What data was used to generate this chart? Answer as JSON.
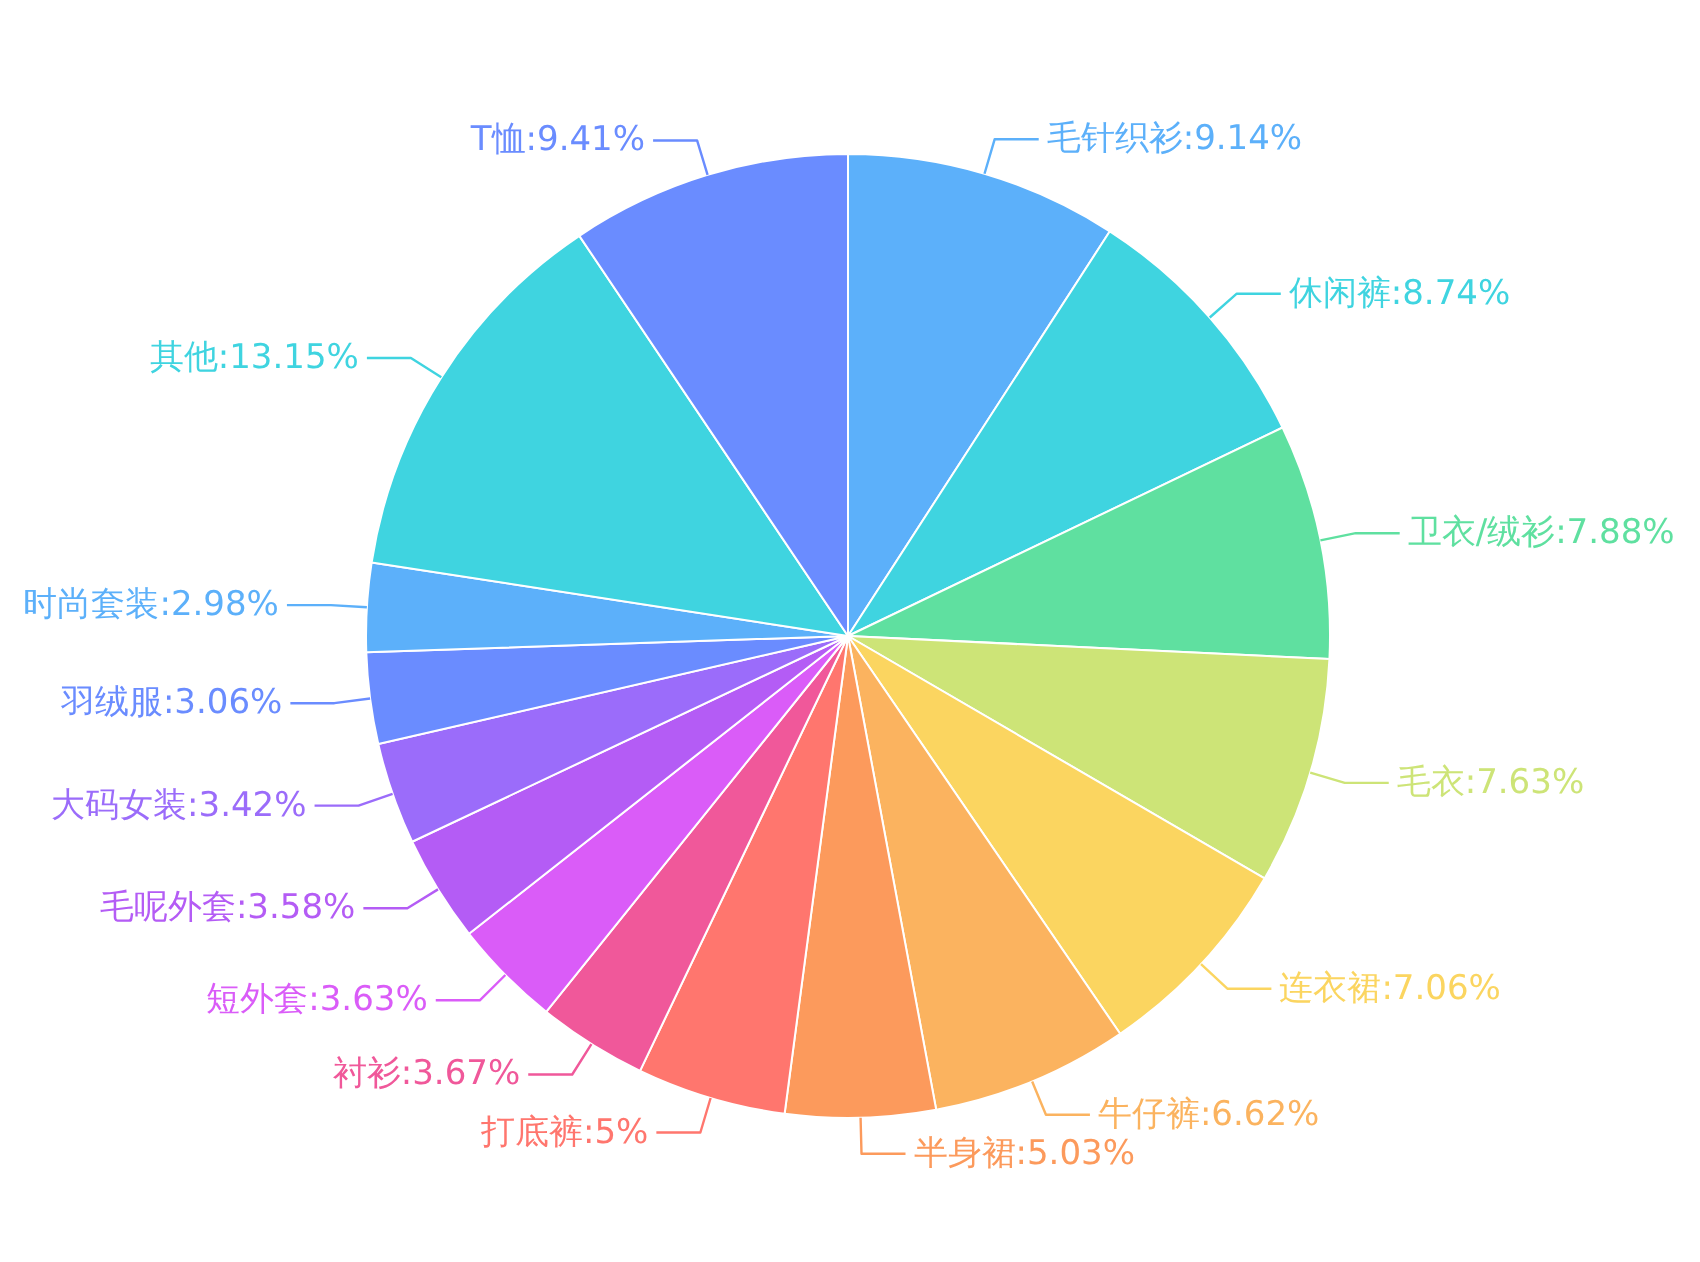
{
  "chart_data": {
    "type": "pie",
    "categories": [
      "毛针织衫",
      "休闲裤",
      "卫衣/绒衫",
      "毛衣",
      "连衣裙",
      "牛仔裤",
      "半身裙",
      "打底裤",
      "衬衫",
      "短外套",
      "毛呢外套",
      "大码女装",
      "羽绒服",
      "时尚套装",
      "其他",
      "T恤"
    ],
    "values": [
      9.14,
      8.74,
      7.88,
      7.63,
      7.06,
      6.62,
      5.03,
      5,
      3.67,
      3.63,
      3.58,
      3.42,
      3.06,
      2.98,
      13.15,
      9.41
    ],
    "colors": [
      "#5cb0fa",
      "#3fd4e0",
      "#5fe0a0",
      "#cde477",
      "#fbd560",
      "#fbb35f",
      "#fc9a5c",
      "#ff766e",
      "#f0589a",
      "#da5cf8",
      "#b45cf5",
      "#9b6cfa",
      "#6a8cff",
      "#5cb0fa",
      "#3fd4e0",
      "#6a8cff"
    ],
    "value_labels": [
      ":9.14%",
      ":8.74%",
      ":7.88%",
      ":7.63%",
      ":7.06%",
      ":6.62%",
      ":5.03%",
      ":5%",
      ":3.67%",
      ":3.63%",
      ":3.58%",
      ":3.42%",
      ":3.06%",
      ":2.98%",
      ":13.15%",
      ":9.41%"
    ]
  }
}
